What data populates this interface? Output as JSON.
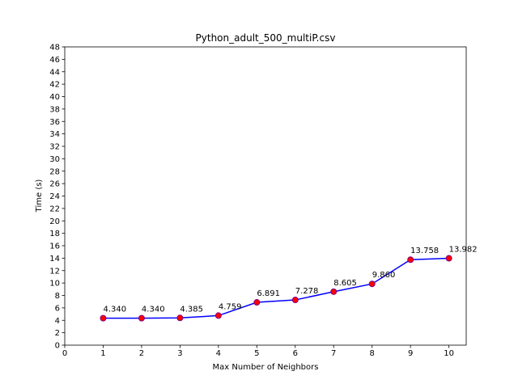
{
  "chart_data": {
    "type": "line",
    "title": "Python_adult_500_multiP.csv",
    "xlabel": "Max Number of Neighbors",
    "ylabel": "Time (s)",
    "x": [
      1,
      2,
      3,
      4,
      5,
      6,
      7,
      8,
      9,
      10
    ],
    "y": [
      4.34,
      4.34,
      4.385,
      4.759,
      6.891,
      7.278,
      8.605,
      9.86,
      13.758,
      13.982
    ],
    "data_labels": [
      "4.340",
      "4.340",
      "4.385",
      "4.759",
      "6.891",
      "7.278",
      "8.605",
      "9.860",
      "13.758",
      "13.982"
    ],
    "xlim": [
      0,
      10.45
    ],
    "ylim": [
      0,
      48
    ],
    "xticks": [
      "0",
      "1",
      "2",
      "3",
      "4",
      "5",
      "6",
      "7",
      "8",
      "9",
      "10"
    ],
    "yticks": [
      "0",
      "2",
      "4",
      "6",
      "8",
      "10",
      "12",
      "14",
      "16",
      "18",
      "20",
      "22",
      "24",
      "26",
      "28",
      "30",
      "32",
      "34",
      "36",
      "38",
      "40",
      "42",
      "44",
      "46",
      "48"
    ],
    "grid": false,
    "line_color": "#0000ff",
    "marker_color": "#ff0000",
    "marker_edge_color": "#800080"
  }
}
